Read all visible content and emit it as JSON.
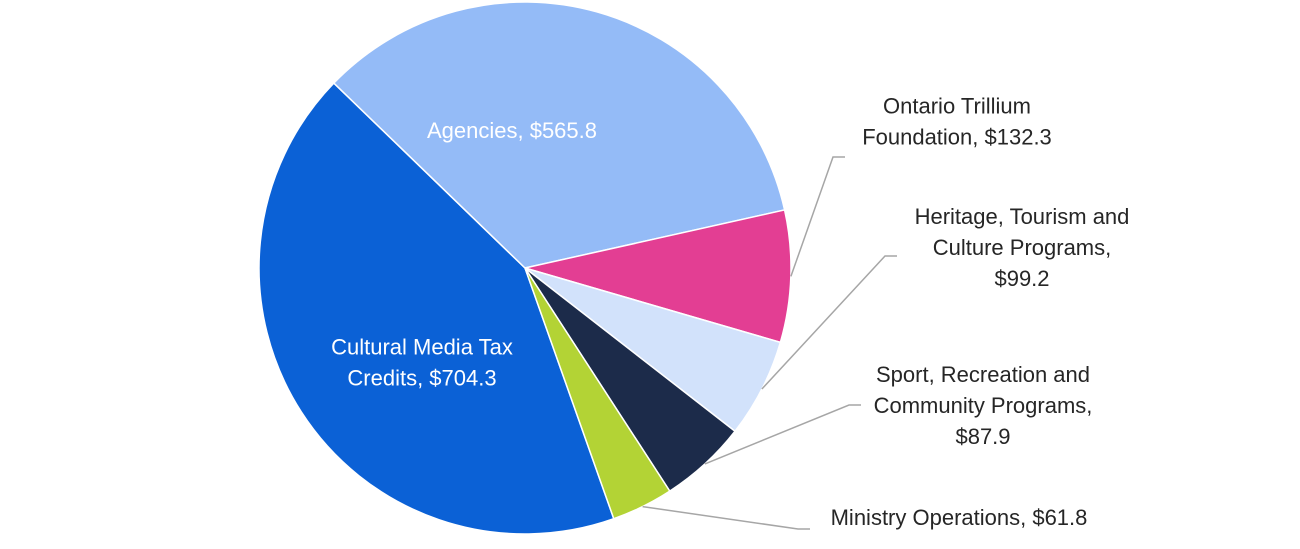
{
  "chart_data": {
    "type": "pie",
    "title": "",
    "categories": [
      "Cultural Media Tax Credits",
      "Agencies",
      "Ontario Trillium Foundation",
      "Heritage, Tourism and Culture Programs",
      "Sport, Recreation and Community Programs",
      "Ministry Operations"
    ],
    "values": [
      704.3,
      565.8,
      132.3,
      99.2,
      87.9,
      61.8
    ],
    "colors": [
      "#0b61d6",
      "#94bbf7",
      "#e33e93",
      "#d2e2fb",
      "#1c2b4a",
      "#b3d335"
    ],
    "data_labels": [
      [
        "Cultural Media Tax",
        "Credits, $704.3"
      ],
      [
        "Agencies, $565.8"
      ],
      [
        "Ontario Trillium",
        "Foundation, $132.3"
      ],
      [
        "Heritage, Tourism and",
        "Culture Programs,",
        "$99.2"
      ],
      [
        "Sport, Recreation and",
        "Community Programs,",
        "$87.9"
      ],
      [
        "Ministry Operations, $61.8"
      ]
    ],
    "label_text_colors": [
      "#ffffff",
      "#ffffff",
      "#262626",
      "#262626",
      "#262626",
      "#262626"
    ],
    "legend": "none"
  }
}
